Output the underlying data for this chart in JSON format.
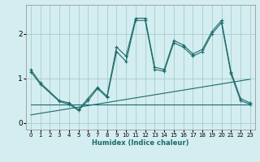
{
  "xlabel": "Humidex (Indice chaleur)",
  "bg_color": "#d4edf0",
  "line_color": "#1a6b6b",
  "grid_color": "#a8cccc",
  "xlim": [
    -0.5,
    23.5
  ],
  "ylim": [
    -0.15,
    2.65
  ],
  "yticks": [
    0,
    1,
    2
  ],
  "xticks": [
    0,
    1,
    2,
    3,
    4,
    5,
    6,
    7,
    8,
    9,
    10,
    11,
    12,
    13,
    14,
    15,
    16,
    17,
    18,
    19,
    20,
    21,
    22,
    23
  ],
  "series": [
    {
      "x": [
        0,
        1,
        3,
        4,
        5,
        6,
        7,
        8,
        9,
        10,
        11,
        12,
        13,
        14,
        15,
        16,
        17,
        18,
        19,
        20,
        21,
        22,
        23
      ],
      "y": [
        1.2,
        0.9,
        0.5,
        0.45,
        0.3,
        0.55,
        0.8,
        0.6,
        1.7,
        1.5,
        2.35,
        2.35,
        1.25,
        1.2,
        1.85,
        1.75,
        1.55,
        1.65,
        2.05,
        2.3,
        1.15,
        0.55,
        0.45
      ],
      "marker": true
    },
    {
      "x": [
        0,
        1,
        3,
        4,
        5,
        6,
        7,
        8,
        9,
        10,
        11,
        12,
        13,
        14,
        15,
        16,
        17,
        18,
        19,
        20,
        21,
        22,
        23
      ],
      "y": [
        1.15,
        0.87,
        0.48,
        0.42,
        0.28,
        0.5,
        0.77,
        0.57,
        1.6,
        1.38,
        2.3,
        2.3,
        1.2,
        1.16,
        1.8,
        1.7,
        1.5,
        1.6,
        2.0,
        2.25,
        1.1,
        0.5,
        0.42
      ],
      "marker": true
    },
    {
      "x": [
        0,
        13,
        20,
        23
      ],
      "y": [
        0.42,
        0.42,
        0.42,
        0.42
      ],
      "marker": false
    },
    {
      "x": [
        0,
        23
      ],
      "y": [
        0.18,
        0.98
      ],
      "marker": false
    }
  ]
}
